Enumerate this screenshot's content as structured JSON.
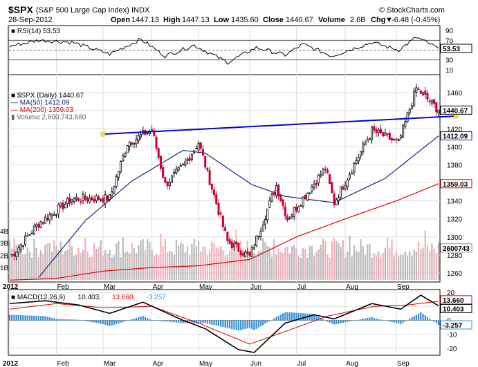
{
  "header": {
    "symbol": "$SPX",
    "name": "(S&P 500 Large Cap Index)",
    "exchange": "INDX",
    "source": "© StockCharts.com",
    "date": "28-Sep-2012",
    "open_label": "Open",
    "open": "1447.13",
    "high_label": "High",
    "high": "1447.13",
    "low_label": "Low",
    "low": "1435.60",
    "close_label": "Close",
    "close": "1440.67",
    "volume_label": "Volume",
    "volume": "2.6B",
    "chg_label": "Chg",
    "chg": "-6.48 (-0.45%)",
    "chg_arrow": "▼"
  },
  "colors": {
    "up_candle": "#000000",
    "down_candle": "#cc0033",
    "ma50": "#1a237e",
    "ma200": "#dd0000",
    "trendline": "#0000dd",
    "volume_up": "#bbbbbb",
    "volume_down": "#f2b3bd",
    "macd_hist": "#3a8fd6",
    "grid": "#dddddd",
    "rsi_line": "#000000"
  },
  "chart_data": [
    {
      "type": "line",
      "panel": "RSI",
      "legend": "RSI(14) 53.53",
      "ylim": [
        0,
        100
      ],
      "y_ticks": [
        "90",
        "70",
        "50",
        "30",
        "10"
      ],
      "reference_lines": [
        70,
        50,
        30
      ],
      "last_value_label": "53.53",
      "key_points": [
        {
          "x": "2012-01-03",
          "y": 58
        },
        {
          "x": "2012-01-20",
          "y": 70
        },
        {
          "x": "2012-02-10",
          "y": 66
        },
        {
          "x": "2012-03-06",
          "y": 42
        },
        {
          "x": "2012-03-26",
          "y": 72
        },
        {
          "x": "2012-04-10",
          "y": 38
        },
        {
          "x": "2012-04-27",
          "y": 60
        },
        {
          "x": "2012-05-18",
          "y": 25
        },
        {
          "x": "2012-06-06",
          "y": 55
        },
        {
          "x": "2012-06-25",
          "y": 40
        },
        {
          "x": "2012-07-05",
          "y": 62
        },
        {
          "x": "2012-07-24",
          "y": 38
        },
        {
          "x": "2012-08-17",
          "y": 66
        },
        {
          "x": "2012-09-04",
          "y": 50
        },
        {
          "x": "2012-09-14",
          "y": 76
        },
        {
          "x": "2012-09-28",
          "y": 53.53
        }
      ]
    },
    {
      "type": "candlestick",
      "panel": "Price",
      "legend": [
        {
          "text": "$SPX (Daily) 1440.67",
          "color": "#000000"
        },
        {
          "text": "MA(50) 1412.09",
          "color": "#1a237e"
        },
        {
          "text": "MA(200) 1359.03",
          "color": "#dd0000"
        },
        {
          "text": "Volume 2,600,743,680",
          "color": "#666666"
        }
      ],
      "ylim": [
        1250,
        1480
      ],
      "y_ticks": [
        "1460",
        "1440",
        "1420",
        "1400",
        "1380",
        "1360",
        "1340",
        "1320",
        "1300",
        "1280",
        "1260"
      ],
      "x_labels": [
        "2012",
        "Feb",
        "Mar",
        "Apr",
        "May",
        "Jun",
        "Jul",
        "Aug",
        "Sep"
      ],
      "price_labels": [
        "1440.67",
        "1412.09",
        "1359.03"
      ],
      "volume_labels": [
        "4B",
        "3B",
        "2B",
        "1B",
        "2600743"
      ],
      "volume_max": 4.5,
      "close_key_points": [
        {
          "x": "2012-01-03",
          "y": 1277
        },
        {
          "x": "2012-01-20",
          "y": 1315
        },
        {
          "x": "2012-02-10",
          "y": 1342
        },
        {
          "x": "2012-03-06",
          "y": 1343
        },
        {
          "x": "2012-03-16",
          "y": 1404
        },
        {
          "x": "2012-04-02",
          "y": 1419
        },
        {
          "x": "2012-04-10",
          "y": 1358
        },
        {
          "x": "2012-04-20",
          "y": 1378
        },
        {
          "x": "2012-05-01",
          "y": 1405
        },
        {
          "x": "2012-05-18",
          "y": 1295
        },
        {
          "x": "2012-06-01",
          "y": 1278
        },
        {
          "x": "2012-06-19",
          "y": 1357
        },
        {
          "x": "2012-06-26",
          "y": 1320
        },
        {
          "x": "2012-07-19",
          "y": 1376
        },
        {
          "x": "2012-07-25",
          "y": 1338
        },
        {
          "x": "2012-08-17",
          "y": 1418
        },
        {
          "x": "2012-09-04",
          "y": 1404
        },
        {
          "x": "2012-09-14",
          "y": 1465
        },
        {
          "x": "2012-09-28",
          "y": 1440.67
        }
      ],
      "ma50_key_points": [
        {
          "x": "2012-01-20",
          "y": 1255
        },
        {
          "x": "2012-02-20",
          "y": 1318
        },
        {
          "x": "2012-03-20",
          "y": 1362
        },
        {
          "x": "2012-04-20",
          "y": 1396
        },
        {
          "x": "2012-05-04",
          "y": 1393
        },
        {
          "x": "2012-06-04",
          "y": 1358
        },
        {
          "x": "2012-06-25",
          "y": 1345
        },
        {
          "x": "2012-07-25",
          "y": 1338
        },
        {
          "x": "2012-08-25",
          "y": 1365
        },
        {
          "x": "2012-09-28",
          "y": 1412.09
        }
      ],
      "ma200_key_points": [
        {
          "x": "2012-01-03",
          "y": 1252
        },
        {
          "x": "2012-02-01",
          "y": 1254
        },
        {
          "x": "2012-03-01",
          "y": 1262
        },
        {
          "x": "2012-04-01",
          "y": 1266
        },
        {
          "x": "2012-05-01",
          "y": 1268
        },
        {
          "x": "2012-06-01",
          "y": 1275
        },
        {
          "x": "2012-07-01",
          "y": 1300
        },
        {
          "x": "2012-08-01",
          "y": 1320
        },
        {
          "x": "2012-09-01",
          "y": 1340
        },
        {
          "x": "2012-09-28",
          "y": 1359.03
        }
      ],
      "trendline": [
        {
          "x": "2012-03-01",
          "y": 1414
        },
        {
          "x": "2012-09-28",
          "y": 1434
        }
      ]
    },
    {
      "type": "line",
      "panel": "MACD",
      "legend": [
        {
          "text": "MACD(12,26,9)",
          "color": "#000000"
        },
        {
          "text": "10.403,",
          "color": "#000000"
        },
        {
          "text": "13.660,",
          "color": "#dd0000"
        },
        {
          "text": "-3.257",
          "color": "#3a8fd6"
        }
      ],
      "ylim": [
        -25,
        22
      ],
      "y_ticks": [
        "20",
        "10",
        "0",
        "-10",
        "-20"
      ],
      "x_labels": [
        "2012",
        "Feb",
        "Mar",
        "Apr",
        "May",
        "Jun",
        "Jul",
        "Aug",
        "Sep"
      ],
      "value_labels": [
        "13.660",
        "10.403",
        "-3.257"
      ],
      "macd_key_points": [
        {
          "x": "2012-01-03",
          "y": 12
        },
        {
          "x": "2012-01-25",
          "y": 14
        },
        {
          "x": "2012-02-15",
          "y": 11
        },
        {
          "x": "2012-03-06",
          "y": 5
        },
        {
          "x": "2012-03-27",
          "y": 13
        },
        {
          "x": "2012-04-20",
          "y": 0
        },
        {
          "x": "2012-05-04",
          "y": -6
        },
        {
          "x": "2012-05-25",
          "y": -21
        },
        {
          "x": "2012-06-05",
          "y": -23
        },
        {
          "x": "2012-06-25",
          "y": -2
        },
        {
          "x": "2012-07-12",
          "y": 4
        },
        {
          "x": "2012-07-25",
          "y": 1
        },
        {
          "x": "2012-08-17",
          "y": 12
        },
        {
          "x": "2012-09-05",
          "y": 8
        },
        {
          "x": "2012-09-18",
          "y": 18
        },
        {
          "x": "2012-09-28",
          "y": 10.403
        }
      ],
      "signal_key_points": [
        {
          "x": "2012-01-03",
          "y": 8
        },
        {
          "x": "2012-02-01",
          "y": 12
        },
        {
          "x": "2012-03-01",
          "y": 9
        },
        {
          "x": "2012-04-01",
          "y": 10
        },
        {
          "x": "2012-05-01",
          "y": -2
        },
        {
          "x": "2012-06-01",
          "y": -17
        },
        {
          "x": "2012-06-25",
          "y": -8
        },
        {
          "x": "2012-07-20",
          "y": 3
        },
        {
          "x": "2012-08-20",
          "y": 10
        },
        {
          "x": "2012-09-10",
          "y": 11
        },
        {
          "x": "2012-09-28",
          "y": 13.66
        }
      ],
      "histogram_last": -3.257
    }
  ]
}
